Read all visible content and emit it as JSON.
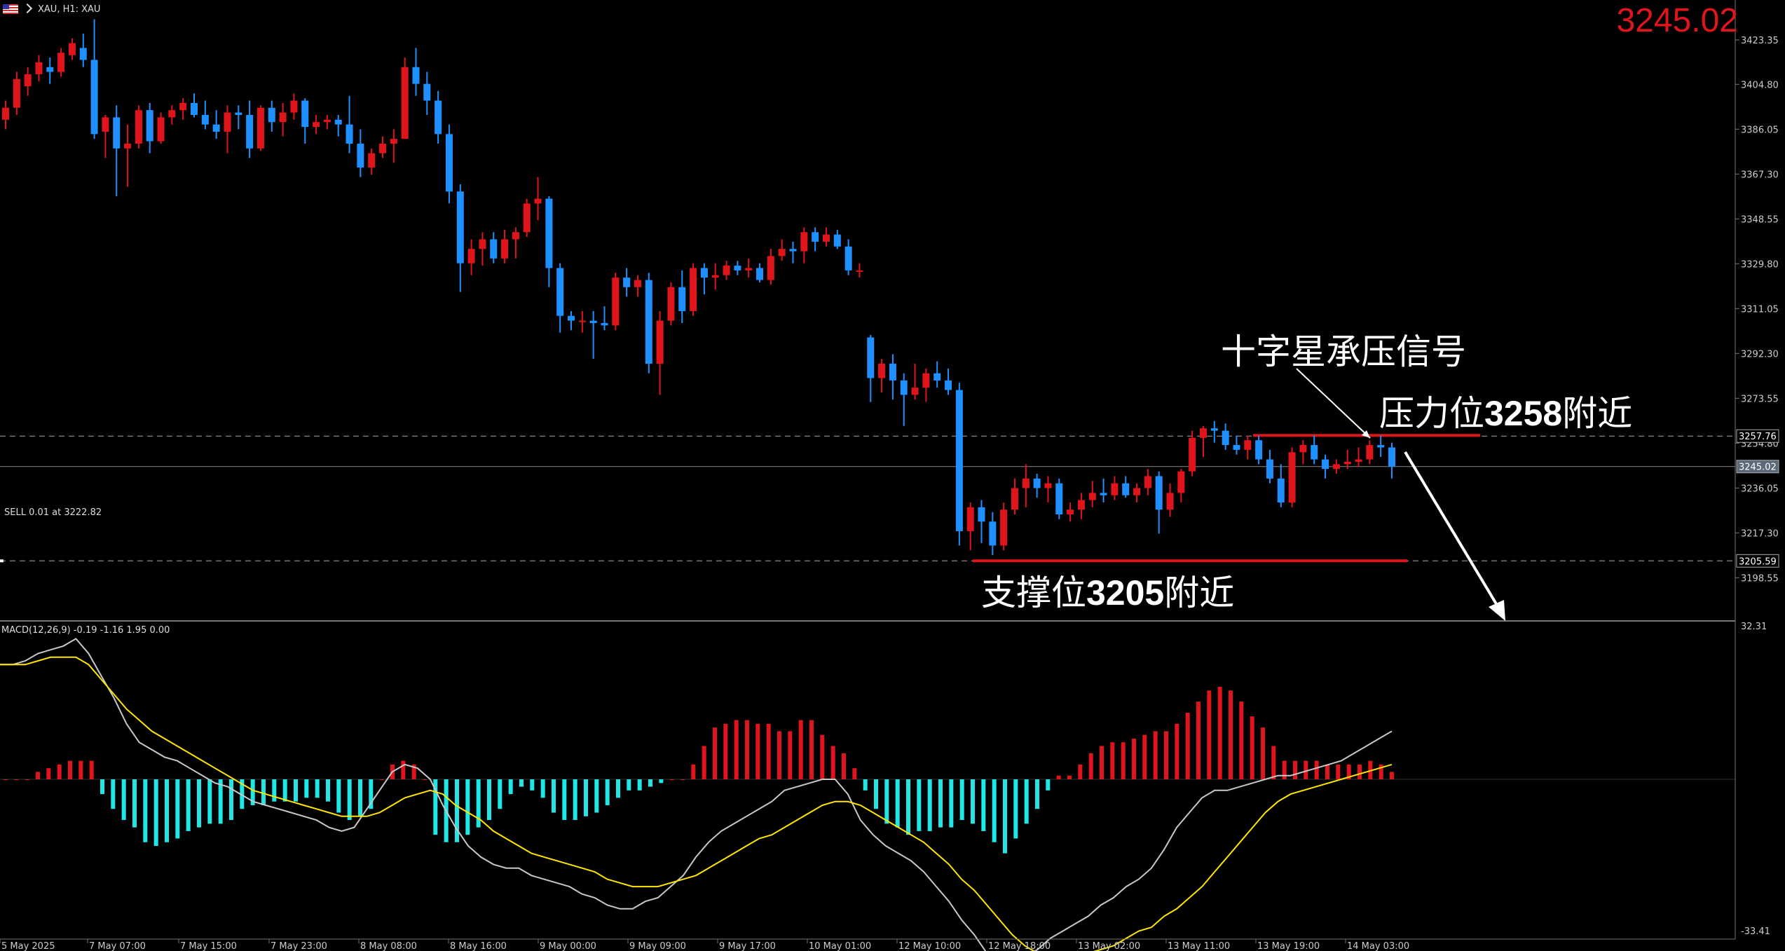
{
  "header": {
    "title": "XAU, H1: XAU"
  },
  "last_price_display": "3245.02",
  "annotations": {
    "doji": "十字星承压信号",
    "resistance_pre": "压力位",
    "resistance_num": "3258",
    "resistance_post": "附近",
    "support_pre": "支撑位",
    "support_num": "3205",
    "support_post": "附近"
  },
  "sell_order_label": "SELL 0.01 at 3222.82",
  "macd_label": "MACD(12,26,9) -0.19 -1.16 1.95 0.00",
  "colors": {
    "up": "#e0151b",
    "down": "#1e90ff",
    "macd_pos": "#e0151b",
    "macd_neg": "#20e6e6",
    "macd_line": "#c8c8c8",
    "signal_line": "#ffe600",
    "level_line": "#e0151b",
    "grid": "#777777"
  },
  "chart_data": [
    {
      "type": "candlestick",
      "symbol": "XAU",
      "timeframe": "H1",
      "y_ticks": [
        3423.35,
        3404.8,
        3386.05,
        3367.3,
        3348.55,
        3329.8,
        3311.05,
        3292.3,
        3273.55,
        3254.8,
        3236.05,
        3217.3,
        3198.55
      ],
      "x_tick_labels": [
        "5 May 2025",
        "7 May 07:00",
        "7 May 15:00",
        "7 May 23:00",
        "8 May 08:00",
        "8 May 16:00",
        "9 May 00:00",
        "9 May 09:00",
        "9 May 17:00",
        "10 May 01:00",
        "12 May 10:00",
        "12 May 18:00",
        "13 May 02:00",
        "13 May 11:00",
        "13 May 19:00",
        "14 May 03:00"
      ],
      "levels": [
        {
          "label": "3257.76",
          "value": 3257.76
        },
        {
          "label": "3245.02",
          "value": 3245.02
        },
        {
          "label": "3205.59",
          "value": 3205.59
        }
      ],
      "candles_ohlc": [
        [
          3390,
          3398,
          3386,
          3395
        ],
        [
          3395,
          3410,
          3392,
          3407
        ],
        [
          3404,
          3412,
          3400,
          3409
        ],
        [
          3409,
          3417,
          3406,
          3414
        ],
        [
          3412,
          3416,
          3405,
          3410
        ],
        [
          3410,
          3420,
          3408,
          3418
        ],
        [
          3417,
          3424,
          3415,
          3422
        ],
        [
          3420,
          3426,
          3412,
          3415
        ],
        [
          3415,
          3432,
          3382,
          3384
        ],
        [
          3385,
          3392,
          3374,
          3391
        ],
        [
          3391,
          3396,
          3358,
          3378
        ],
        [
          3378,
          3388,
          3362,
          3380
        ],
        [
          3380,
          3396,
          3378,
          3394
        ],
        [
          3394,
          3397,
          3376,
          3381
        ],
        [
          3381,
          3393,
          3380,
          3391
        ],
        [
          3391,
          3396,
          3388,
          3394
        ],
        [
          3394,
          3399,
          3390,
          3397
        ],
        [
          3397,
          3401,
          3391,
          3392
        ],
        [
          3392,
          3398,
          3386,
          3388
        ],
        [
          3388,
          3394,
          3382,
          3385
        ],
        [
          3385,
          3396,
          3376,
          3393
        ],
        [
          3393,
          3396,
          3386,
          3392
        ],
        [
          3392,
          3398,
          3374,
          3378
        ],
        [
          3378,
          3396,
          3377,
          3395
        ],
        [
          3395,
          3398,
          3385,
          3389
        ],
        [
          3389,
          3397,
          3383,
          3393
        ],
        [
          3393,
          3401,
          3390,
          3398
        ],
        [
          3398,
          3399,
          3380,
          3387
        ],
        [
          3387,
          3392,
          3384,
          3389
        ],
        [
          3389,
          3392,
          3386,
          3390
        ],
        [
          3390,
          3392,
          3383,
          3388
        ],
        [
          3388,
          3400,
          3376,
          3380
        ],
        [
          3380,
          3386,
          3366,
          3370
        ],
        [
          3370,
          3378,
          3367,
          3376
        ],
        [
          3376,
          3383,
          3374,
          3380
        ],
        [
          3380,
          3386,
          3372,
          3382
        ],
        [
          3382,
          3416,
          3382,
          3412
        ],
        [
          3412,
          3420,
          3400,
          3405
        ],
        [
          3405,
          3410,
          3392,
          3398
        ],
        [
          3398,
          3402,
          3380,
          3384
        ],
        [
          3384,
          3388,
          3355,
          3360
        ],
        [
          3360,
          3363,
          3318,
          3330
        ],
        [
          3330,
          3340,
          3325,
          3336
        ],
        [
          3336,
          3343,
          3329,
          3340
        ],
        [
          3340,
          3343,
          3330,
          3332
        ],
        [
          3332,
          3344,
          3330,
          3340
        ],
        [
          3340,
          3345,
          3332,
          3343
        ],
        [
          3343,
          3357,
          3341,
          3355
        ],
        [
          3355,
          3366,
          3348,
          3357
        ],
        [
          3357,
          3358,
          3320,
          3328
        ],
        [
          3328,
          3330,
          3301,
          3308
        ],
        [
          3308,
          3310,
          3302,
          3306
        ],
        [
          3306,
          3310,
          3301,
          3306
        ],
        [
          3306,
          3310,
          3290,
          3305
        ],
        [
          3305,
          3312,
          3302,
          3304
        ],
        [
          3304,
          3326,
          3302,
          3324
        ],
        [
          3324,
          3328,
          3316,
          3320
        ],
        [
          3320,
          3325,
          3316,
          3323
        ],
        [
          3323,
          3326,
          3284,
          3288
        ],
        [
          3288,
          3310,
          3275,
          3306
        ],
        [
          3306,
          3322,
          3304,
          3320
        ],
        [
          3320,
          3327,
          3305,
          3310
        ],
        [
          3310,
          3330,
          3308,
          3328
        ],
        [
          3328,
          3330,
          3317,
          3324
        ],
        [
          3324,
          3330,
          3319,
          3325
        ],
        [
          3325,
          3331,
          3323,
          3329
        ],
        [
          3329,
          3331,
          3325,
          3327
        ],
        [
          3327,
          3332,
          3324,
          3328
        ],
        [
          3328,
          3330,
          3322,
          3323
        ],
        [
          3323,
          3336,
          3321,
          3333
        ],
        [
          3333,
          3340,
          3331,
          3336
        ],
        [
          3336,
          3339,
          3330,
          3335
        ],
        [
          3335,
          3345,
          3330,
          3343
        ],
        [
          3343,
          3345,
          3335,
          3339
        ],
        [
          3339,
          3345,
          3337,
          3342
        ],
        [
          3342,
          3344,
          3336,
          3337
        ],
        [
          3337,
          3340,
          3325,
          3327
        ],
        [
          3327,
          3330,
          3324,
          3327
        ],
        [
          3299,
          3300,
          3272,
          3282
        ],
        [
          3282,
          3290,
          3276,
          3288
        ],
        [
          3288,
          3292,
          3273,
          3281
        ],
        [
          3281,
          3284,
          3262,
          3275
        ],
        [
          3275,
          3288,
          3273,
          3278
        ],
        [
          3278,
          3286,
          3272,
          3284
        ],
        [
          3284,
          3289,
          3278,
          3281
        ],
        [
          3281,
          3286,
          3275,
          3277
        ],
        [
          3277,
          3280,
          3212,
          3218
        ],
        [
          3218,
          3230,
          3210,
          3228
        ],
        [
          3228,
          3231,
          3213,
          3222
        ],
        [
          3222,
          3226,
          3208,
          3212
        ],
        [
          3212,
          3230,
          3210,
          3227
        ],
        [
          3227,
          3240,
          3225,
          3236
        ],
        [
          3236,
          3246,
          3228,
          3240
        ],
        [
          3240,
          3242,
          3232,
          3236
        ],
        [
          3236,
          3241,
          3230,
          3238
        ],
        [
          3238,
          3240,
          3223,
          3225
        ],
        [
          3225,
          3230,
          3222,
          3227
        ],
        [
          3227,
          3234,
          3223,
          3231
        ],
        [
          3231,
          3239,
          3228,
          3234
        ],
        [
          3234,
          3240,
          3230,
          3233
        ],
        [
          3233,
          3241,
          3231,
          3238
        ],
        [
          3238,
          3241,
          3232,
          3233
        ],
        [
          3233,
          3238,
          3230,
          3236
        ],
        [
          3236,
          3244,
          3233,
          3241
        ],
        [
          3241,
          3243,
          3217,
          3227
        ],
        [
          3227,
          3238,
          3224,
          3234
        ],
        [
          3234,
          3244,
          3230,
          3243
        ],
        [
          3243,
          3260,
          3241,
          3257
        ],
        [
          3257,
          3262,
          3249,
          3261
        ],
        [
          3261,
          3264,
          3255,
          3260
        ],
        [
          3260,
          3263,
          3252,
          3254
        ],
        [
          3254,
          3258,
          3250,
          3252
        ],
        [
          3252,
          3258,
          3248,
          3256
        ],
        [
          3256,
          3258,
          3246,
          3248
        ],
        [
          3248,
          3252,
          3238,
          3240
        ],
        [
          3240,
          3246,
          3228,
          3230
        ],
        [
          3230,
          3253,
          3228,
          3251
        ],
        [
          3251,
          3256,
          3246,
          3254
        ],
        [
          3254,
          3258,
          3246,
          3248
        ],
        [
          3248,
          3250,
          3240,
          3244
        ],
        [
          3244,
          3248,
          3242,
          3246
        ],
        [
          3246,
          3252,
          3244,
          3247
        ],
        [
          3247,
          3253,
          3245,
          3248
        ],
        [
          3248,
          3256,
          3246,
          3254
        ],
        [
          3254,
          3258,
          3249,
          3253
        ],
        [
          3253,
          3255,
          3240,
          3245
        ]
      ]
    },
    {
      "type": "macd",
      "params": "12,26,9",
      "y_ticks": [
        32.31,
        -33.41
      ],
      "histogram": [
        0,
        0,
        0,
        2,
        3,
        4,
        5,
        5,
        5,
        -4,
        -8,
        -11,
        -13,
        -17,
        -18,
        -17,
        -16,
        -14,
        -13,
        -12,
        -12,
        -11,
        -8,
        -7,
        -7,
        -6,
        -6,
        -6,
        -5,
        -5,
        -6,
        -9,
        -11,
        -10,
        -8,
        0,
        4,
        5,
        4,
        0,
        -15,
        -17,
        -17,
        -15,
        -13,
        -11,
        -8,
        -4,
        -2,
        -3,
        -5,
        -9,
        -11,
        -11,
        -10,
        -9,
        -7,
        -5,
        -3,
        -3,
        -2,
        -1,
        0,
        0,
        4,
        9,
        14,
        15,
        16,
        16,
        15,
        15,
        13,
        13,
        16,
        16,
        12,
        9,
        7,
        3,
        -3,
        -8,
        -12,
        -13,
        -15,
        -14,
        -14,
        -13,
        -13,
        -11,
        -12,
        -14,
        -17,
        -20,
        -16,
        -12,
        -8,
        -3,
        1,
        1,
        4,
        7,
        9,
        10,
        10,
        11,
        12,
        13,
        13,
        15,
        18,
        21,
        24,
        25,
        24,
        21,
        17,
        14,
        9,
        5,
        5,
        5,
        5,
        4,
        4,
        4,
        4,
        5,
        4,
        2
      ],
      "macd_line": [
        31,
        31,
        32,
        34,
        35,
        36,
        38,
        34,
        28,
        22,
        15,
        10,
        8,
        6,
        5,
        3,
        1,
        -1,
        -2,
        -4,
        -6,
        -7,
        -8,
        -9,
        -10,
        -11,
        -13,
        -14,
        -13,
        -8,
        -3,
        2,
        4,
        3,
        0,
        -7,
        -13,
        -18,
        -21,
        -23,
        -24,
        -24,
        -26,
        -27,
        -28,
        -29,
        -31,
        -32,
        -34,
        -35,
        -35,
        -33,
        -32,
        -29,
        -26,
        -21,
        -17,
        -14,
        -12,
        -10,
        -8,
        -6,
        -3,
        -2,
        -1,
        0,
        0,
        -4,
        -11,
        -15,
        -18,
        -20,
        -22,
        -25,
        -29,
        -33,
        -38,
        -42,
        -47,
        -50,
        -50,
        -48,
        -46,
        -43,
        -41,
        -39,
        -37,
        -34,
        -32,
        -29,
        -27,
        -24,
        -19,
        -13,
        -9,
        -5,
        -3,
        -3,
        -2,
        -1,
        0,
        1,
        1,
        2,
        3,
        4,
        5,
        7,
        9,
        11,
        13
      ],
      "signal_line": [
        31,
        31,
        31,
        32,
        33,
        33,
        33,
        31,
        27,
        23,
        19,
        16,
        13,
        11,
        9,
        7,
        5,
        3,
        1,
        -1,
        -3,
        -4,
        -5,
        -6,
        -7,
        -8,
        -9,
        -10,
        -10,
        -10,
        -9,
        -7,
        -5,
        -4,
        -3,
        -4,
        -7,
        -9,
        -11,
        -14,
        -16,
        -18,
        -20,
        -21,
        -22,
        -23,
        -24,
        -25,
        -27,
        -28,
        -29,
        -29,
        -29,
        -28,
        -27,
        -26,
        -24,
        -22,
        -20,
        -18,
        -16,
        -15,
        -13,
        -11,
        -9,
        -7,
        -6,
        -6,
        -7,
        -9,
        -11,
        -13,
        -15,
        -17,
        -20,
        -23,
        -27,
        -30,
        -34,
        -38,
        -42,
        -45,
        -47,
        -48,
        -48,
        -48,
        -47,
        -46,
        -45,
        -43,
        -41,
        -40,
        -37,
        -35,
        -32,
        -29,
        -25,
        -21,
        -17,
        -13,
        -9,
        -6,
        -4,
        -3,
        -2,
        -1,
        0,
        1,
        2,
        3,
        4
      ],
      "macd_range": [
        -50,
        40
      ]
    }
  ]
}
